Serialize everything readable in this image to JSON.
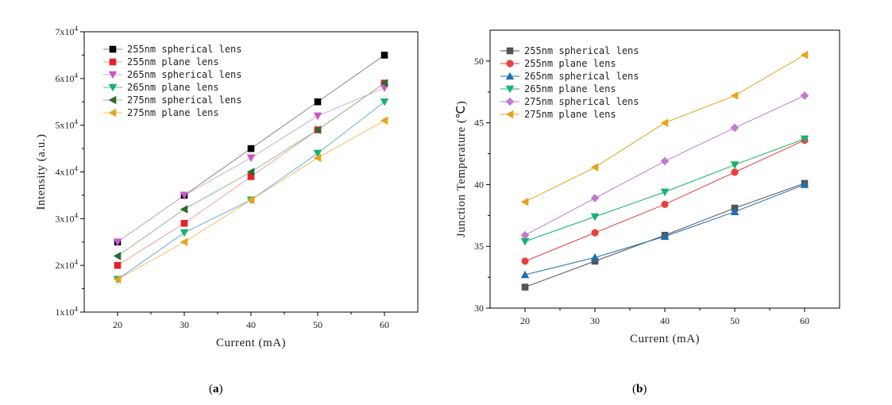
{
  "chart_data": [
    {
      "id": "a",
      "type": "line",
      "panel_label": "a",
      "xlabel": "Current (mA)",
      "ylabel": "Intensity (a.u.)",
      "x": [
        20,
        30,
        40,
        50,
        60
      ],
      "xlim": [
        15,
        65
      ],
      "ylim": [
        10000,
        70000
      ],
      "xticks": [
        "20",
        "30",
        "40",
        "50",
        "60"
      ],
      "yticks": [
        {
          "base": "1x10",
          "exp": "4",
          "value": 10000
        },
        {
          "base": "2x10",
          "exp": "4",
          "value": 20000
        },
        {
          "base": "3x10",
          "exp": "4",
          "value": 30000
        },
        {
          "base": "4x10",
          "exp": "4",
          "value": 40000
        },
        {
          "base": "5x10",
          "exp": "4",
          "value": 50000
        },
        {
          "base": "6x10",
          "exp": "4",
          "value": 60000
        },
        {
          "base": "7x10",
          "exp": "4",
          "value": 70000
        }
      ],
      "legend_position": "top-left",
      "series": [
        {
          "name": "255nm spherical lens",
          "color": "#000000",
          "marker": "square",
          "values": [
            25000,
            35000,
            45000,
            55000,
            65000
          ]
        },
        {
          "name": "255nm plane lens",
          "color": "#e8202a",
          "marker": "square",
          "values": [
            20000,
            29000,
            39000,
            49000,
            59000
          ]
        },
        {
          "name": "265nm spherical lens",
          "color": "#c958c9",
          "marker": "triangle-down",
          "values": [
            25000,
            35000,
            43000,
            52000,
            58000
          ]
        },
        {
          "name": "265nm plane lens",
          "color": "#14b36b",
          "marker": "triangle-down",
          "values": [
            17000,
            27000,
            34000,
            44000,
            55000
          ]
        },
        {
          "name": "275nm spherical lens",
          "color": "#2e6b2e",
          "marker": "triangle-left",
          "values": [
            22000,
            32000,
            40000,
            49000,
            59000
          ]
        },
        {
          "name": "275nm plane lens",
          "color": "#e6a41c",
          "marker": "triangle-left",
          "values": [
            17000,
            25000,
            34000,
            43000,
            51000
          ]
        }
      ],
      "line_colors": [
        "#8a8a8a",
        "#f0a0a0",
        "#d8a8d8",
        "#6aa9e0",
        "#8bbf8b",
        "#f0c060"
      ]
    },
    {
      "id": "b",
      "type": "line",
      "panel_label": "b",
      "xlabel": "Current (mA)",
      "ylabel": "Junction Temperature (℃)",
      "x": [
        20,
        30,
        40,
        50,
        60
      ],
      "xlim": [
        15,
        65
      ],
      "ylim": [
        30,
        52.5
      ],
      "xticks": [
        "20",
        "30",
        "40",
        "50",
        "60"
      ],
      "yticks": [
        {
          "label": "30",
          "value": 30
        },
        {
          "label": "35",
          "value": 35
        },
        {
          "label": "40",
          "value": 40
        },
        {
          "label": "45",
          "value": 45
        },
        {
          "label": "50",
          "value": 50
        }
      ],
      "legend_position": "top-left",
      "series": [
        {
          "name": "255nm spherical lens",
          "color": "#555555",
          "marker": "square",
          "values": [
            31.7,
            33.8,
            35.9,
            38.1,
            40.1
          ]
        },
        {
          "name": "255nm plane lens",
          "color": "#e8403e",
          "marker": "circle",
          "values": [
            33.8,
            36.1,
            38.4,
            41.0,
            43.6
          ]
        },
        {
          "name": "265nm spherical lens",
          "color": "#1f6fb4",
          "marker": "triangle-up",
          "values": [
            32.7,
            34.1,
            35.8,
            37.8,
            40.0
          ]
        },
        {
          "name": "265nm plane lens",
          "color": "#14b36b",
          "marker": "triangle-down",
          "values": [
            35.4,
            37.4,
            39.4,
            41.6,
            43.7
          ]
        },
        {
          "name": "275nm spherical lens",
          "color": "#c07ad0",
          "marker": "diamond",
          "values": [
            35.9,
            38.9,
            41.9,
            44.6,
            47.2
          ]
        },
        {
          "name": "275nm plane lens",
          "color": "#e6a41c",
          "marker": "triangle-left",
          "values": [
            38.6,
            41.4,
            45.0,
            47.2,
            50.5
          ]
        }
      ]
    }
  ],
  "captions": {
    "a": "a",
    "b": "b"
  }
}
